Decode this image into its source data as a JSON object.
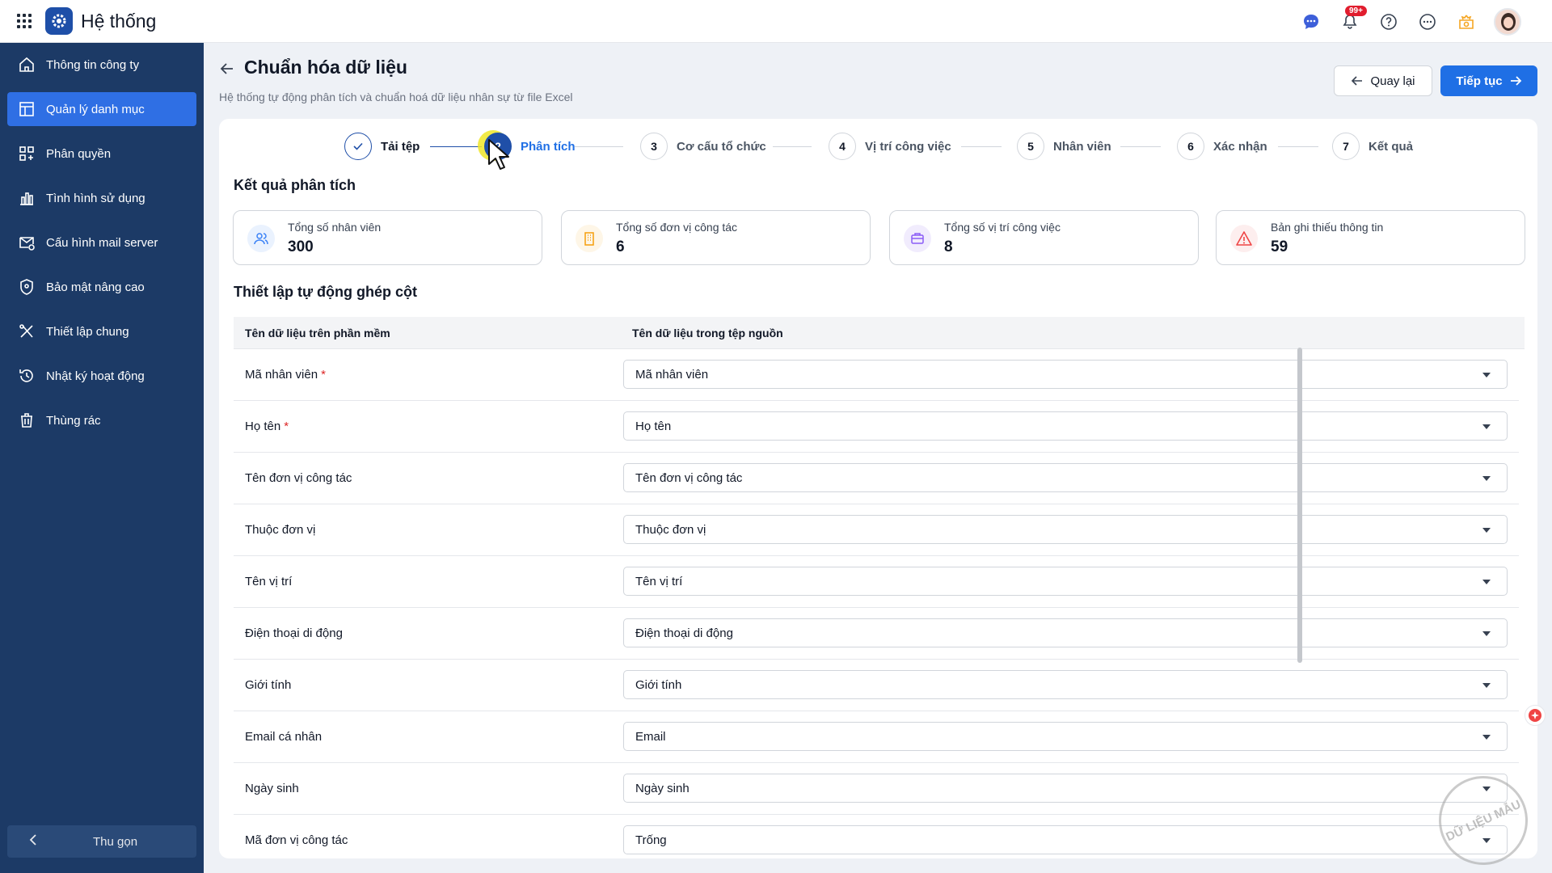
{
  "app": {
    "title": "Hệ thống"
  },
  "header": {
    "notification_badge": "99+"
  },
  "sidebar": {
    "items": [
      {
        "label": "Thông tin công ty",
        "icon": "home-icon",
        "active": false
      },
      {
        "label": "Quản lý danh mục",
        "icon": "catalog-icon",
        "active": true
      },
      {
        "label": "Phân quyền",
        "icon": "permission-icon",
        "active": false
      },
      {
        "label": "Tình hình sử dụng",
        "icon": "usage-chart-icon",
        "active": false
      },
      {
        "label": "Cấu hình mail server",
        "icon": "mail-settings-icon",
        "active": false
      },
      {
        "label": "Bảo mật nâng cao",
        "icon": "shield-icon",
        "active": false
      },
      {
        "label": "Thiết lập chung",
        "icon": "tools-icon",
        "active": false
      },
      {
        "label": "Nhật ký hoạt động",
        "icon": "history-icon",
        "active": false
      },
      {
        "label": "Thùng rác",
        "icon": "trash-icon",
        "active": false
      }
    ],
    "collapse_label": "Thu gọn"
  },
  "page": {
    "title": "Chuẩn hóa dữ liệu",
    "subtitle": "Hệ thống tự động phân tích và chuẩn hoá dữ liệu nhân sự từ file Excel",
    "back_label": "Quay lại",
    "next_label": "Tiếp tục"
  },
  "steps": [
    {
      "num": "",
      "label": "Tải tệp",
      "state": "done"
    },
    {
      "num": "2",
      "label": "Phân tích",
      "state": "current"
    },
    {
      "num": "3",
      "label": "Cơ cấu tổ chức",
      "state": "pending"
    },
    {
      "num": "4",
      "label": "Vị trí công việc",
      "state": "pending"
    },
    {
      "num": "5",
      "label": "Nhân viên",
      "state": "pending"
    },
    {
      "num": "6",
      "label": "Xác nhận",
      "state": "pending"
    },
    {
      "num": "7",
      "label": "Kết quả",
      "state": "pending"
    }
  ],
  "results": {
    "title": "Kết quả phân tích",
    "stats": [
      {
        "label": "Tổng số nhân viên",
        "value": "300",
        "icon": "users-icon",
        "color": "#3b82f6",
        "bg": "#eaf2fe"
      },
      {
        "label": "Tổng số đơn vị công tác",
        "value": "6",
        "icon": "building-icon",
        "color": "#f59e0b",
        "bg": "#fef6e7"
      },
      {
        "label": "Tổng số vị trí công việc",
        "value": "8",
        "icon": "briefcase-icon",
        "color": "#8b5cf6",
        "bg": "#f1ecfd"
      },
      {
        "label": "Bản ghi thiếu thông tin",
        "value": "59",
        "icon": "warning-icon",
        "color": "#ef4444",
        "bg": "#fdeeee"
      }
    ]
  },
  "mapping": {
    "title": "Thiết lập tự động ghép cột",
    "col_software": "Tên dữ liệu trên phần mềm",
    "col_source": "Tên dữ liệu trong tệp nguồn",
    "rows": [
      {
        "field": "Mã nhân viên",
        "required": true,
        "value": "Mã nhân viên"
      },
      {
        "field": "Họ tên",
        "required": true,
        "value": "Họ tên"
      },
      {
        "field": "Tên đơn vị công tác",
        "required": false,
        "value": "Tên đơn vị công tác"
      },
      {
        "field": "Thuộc đơn vị",
        "required": false,
        "value": "Thuộc đơn vị"
      },
      {
        "field": "Tên vị trí",
        "required": false,
        "value": "Tên vị trí"
      },
      {
        "field": "Điện thoại di động",
        "required": false,
        "value": "Điện thoại di động"
      },
      {
        "field": "Giới tính",
        "required": false,
        "value": "Giới tính"
      },
      {
        "field": "Email cá nhân",
        "required": false,
        "value": "Email"
      },
      {
        "field": "Ngày sinh",
        "required": false,
        "value": "Ngày sinh"
      },
      {
        "field": "Mã đơn vị công tác",
        "required": false,
        "value": "Trống"
      }
    ]
  },
  "watermark": "DỮ LIỆU MẪU",
  "colors": {
    "primary": "#1f6fe5",
    "sidebar": "#1c3a66",
    "sidebar_active": "#2f6fe4",
    "required": "#dc2626"
  }
}
